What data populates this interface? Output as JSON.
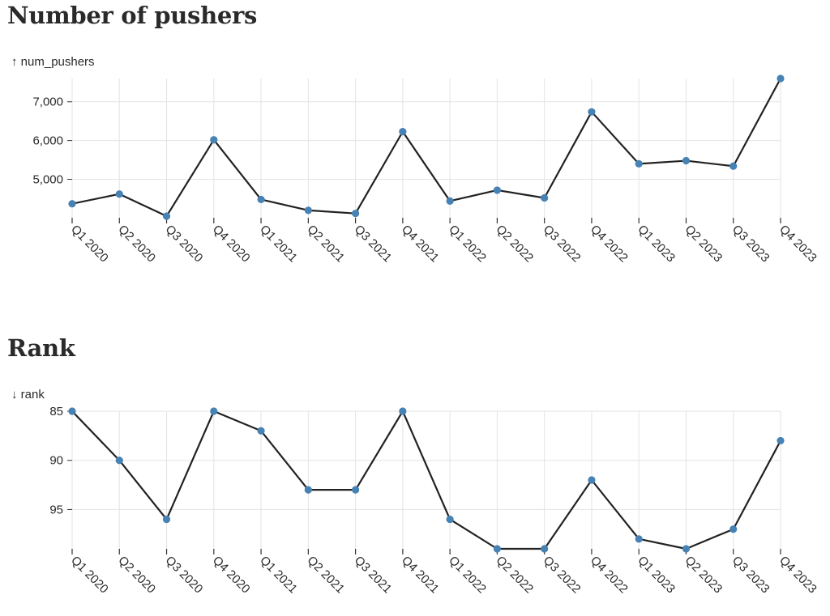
{
  "chart_data": [
    {
      "type": "line",
      "title": "Number of pushers",
      "ylabel": "↑ num_pushers",
      "categories": [
        "Q1 2020",
        "Q2 2020",
        "Q3 2020",
        "Q4 2020",
        "Q1 2021",
        "Q2 2021",
        "Q3 2021",
        "Q4 2021",
        "Q1 2022",
        "Q2 2022",
        "Q3 2022",
        "Q4 2022",
        "Q1 2023",
        "Q2 2023",
        "Q3 2023",
        "Q4 2023"
      ],
      "values": [
        4370,
        4620,
        4050,
        6020,
        4480,
        4200,
        4120,
        6230,
        4440,
        4720,
        4520,
        6740,
        5400,
        5480,
        5340,
        7600
      ],
      "ylim": [
        3800,
        7600
      ],
      "yticks": [
        5000,
        6000,
        7000
      ],
      "ytick_labels": [
        "5,000",
        "6,000",
        "7,000"
      ],
      "y_reversed": false,
      "grid": true,
      "line_color": "#222222",
      "marker_color": "#4682b4"
    },
    {
      "type": "line",
      "title": "Rank",
      "ylabel": "↓ rank",
      "categories": [
        "Q1 2020",
        "Q2 2020",
        "Q3 2020",
        "Q4 2020",
        "Q1 2021",
        "Q2 2021",
        "Q3 2021",
        "Q4 2021",
        "Q1 2022",
        "Q2 2022",
        "Q3 2022",
        "Q4 2022",
        "Q1 2023",
        "Q2 2023",
        "Q3 2023",
        "Q4 2023"
      ],
      "values": [
        85,
        90,
        96,
        85,
        87,
        93,
        93,
        85,
        96,
        99,
        99,
        92,
        98,
        99,
        97,
        88
      ],
      "ylim": [
        85,
        99
      ],
      "yticks": [
        85,
        90,
        95
      ],
      "ytick_labels": [
        "85",
        "90",
        "95"
      ],
      "y_reversed": true,
      "grid": true,
      "line_color": "#222222",
      "marker_color": "#4682b4"
    }
  ]
}
